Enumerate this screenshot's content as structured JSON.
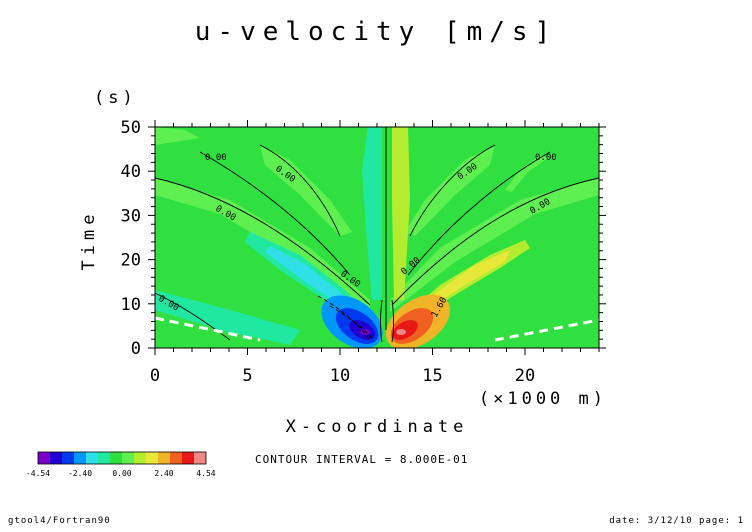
{
  "chart_data": {
    "type": "heatmap",
    "title": "u-velocity [m/s]",
    "xlabel": "X-coordinate",
    "x_unit": "(×1000 m)",
    "ylabel": "Time",
    "y_unit": "(s)",
    "xlim": [
      0,
      24
    ],
    "ylim": [
      0,
      50
    ],
    "x_ticks": [
      0,
      5,
      10,
      15,
      20
    ],
    "y_ticks": [
      0,
      10,
      20,
      30,
      40,
      50
    ],
    "grid": false,
    "contour_interval_text": "CONTOUR INTERVAL = 8.000E-01",
    "colorbar": {
      "colors": [
        "#7a00c8",
        "#2000d0",
        "#0038f0",
        "#0098ff",
        "#30e0e8",
        "#20e8a0",
        "#30e040",
        "#5ef050",
        "#b4ec30",
        "#e8e838",
        "#f0b428",
        "#f06020",
        "#e81818",
        "#f08888"
      ],
      "tick_labels": [
        "-4.54",
        "-2.40",
        "0.00",
        "2.40",
        "4.54"
      ]
    },
    "contour_labels": [
      "0.00",
      "0.00",
      "0.00",
      "0.00",
      "0.00",
      "0.00",
      "0.00",
      "0.00",
      "0.00",
      "1.60"
    ]
  },
  "footer": {
    "left": "gtool4/Fortran90",
    "right": "date: 3/12/10 page: 1"
  }
}
